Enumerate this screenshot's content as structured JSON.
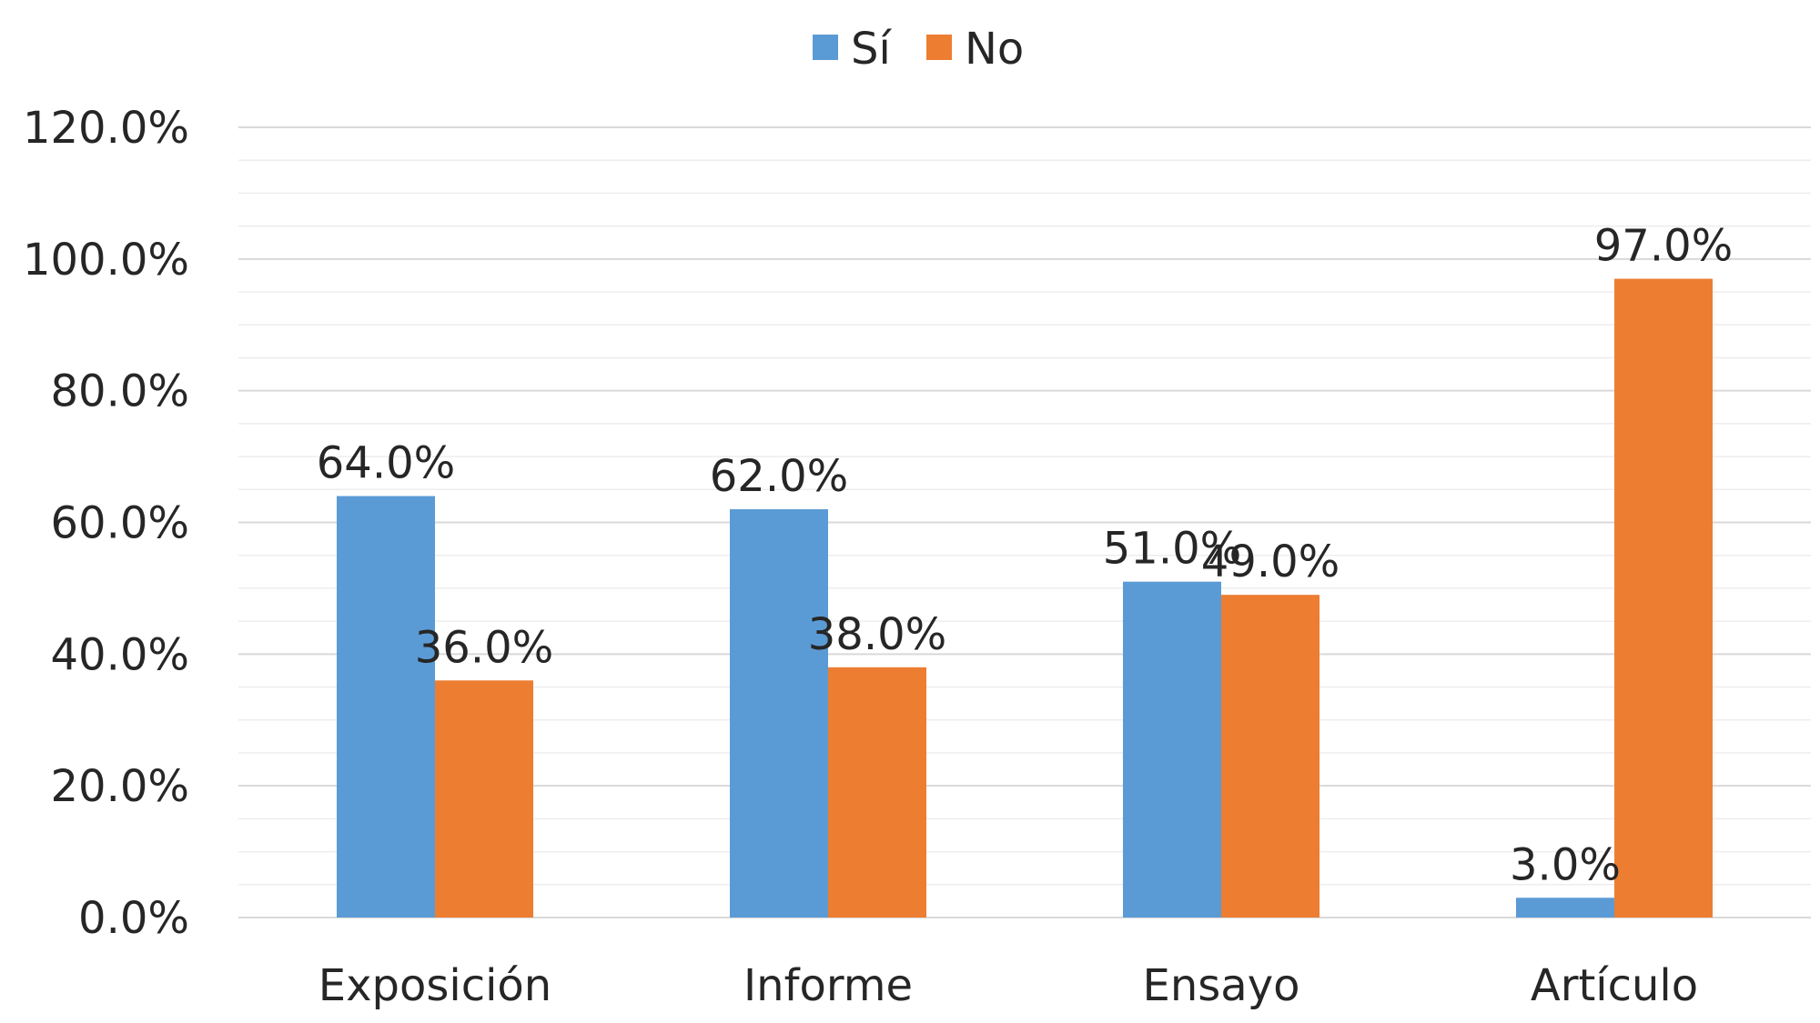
{
  "chart_data": {
    "type": "bar",
    "categories": [
      "Exposición",
      "Informe",
      "Ensayo",
      "Artículo"
    ],
    "series": [
      {
        "name": "Sí",
        "values": [
          64.0,
          62.0,
          51.0,
          3.0
        ],
        "color": "#5B9BD5"
      },
      {
        "name": "No",
        "values": [
          36.0,
          38.0,
          49.0,
          97.0
        ],
        "color": "#ED7D31"
      }
    ],
    "data_labels": [
      [
        "64.0%",
        "62.0%",
        "51.0%",
        "3.0%"
      ],
      [
        "36.0%",
        "38.0%",
        "49.0%",
        "97.0%"
      ]
    ],
    "title": "",
    "xlabel": "",
    "ylabel": "",
    "ylim": [
      0,
      120
    ],
    "yticks": [
      0,
      20,
      40,
      60,
      80,
      100,
      120
    ],
    "ytick_labels": [
      "0.0%",
      "20.0%",
      "40.0%",
      "60.0%",
      "80.0%",
      "100.0%",
      "120.0%"
    ],
    "grid": true,
    "minor_grid": true,
    "legend_position": "top-center",
    "gridline_color": "#D9D9D9",
    "minor_gridline_color": "#EDEDED"
  }
}
